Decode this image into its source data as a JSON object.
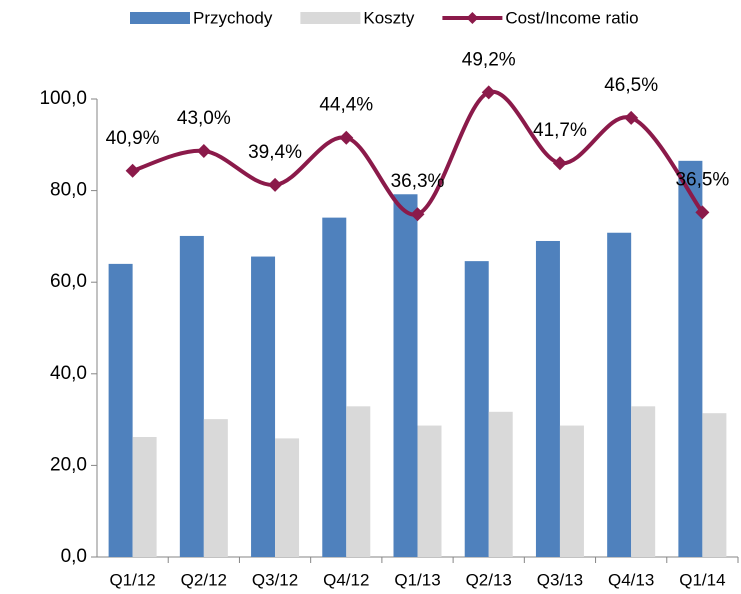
{
  "chart_data": {
    "type": "bar+line",
    "categories": [
      "Q1/12",
      "Q2/12",
      "Q3/12",
      "Q4/12",
      "Q1/13",
      "Q2/13",
      "Q3/13",
      "Q4/13",
      "Q1/14"
    ],
    "series": [
      {
        "name": "Przychody",
        "color": "#4f81bd",
        "type": "bar",
        "values": [
          64.0,
          70.1,
          65.6,
          74.1,
          79.2,
          64.6,
          69.0,
          70.8,
          86.5
        ]
      },
      {
        "name": "Koszty",
        "color": "#d9d9d9",
        "type": "bar",
        "values": [
          26.2,
          30.1,
          25.9,
          32.9,
          28.7,
          31.7,
          28.7,
          32.9,
          31.4
        ]
      },
      {
        "name": "Cost/Income ratio",
        "color": "#8b1a4a",
        "type": "line",
        "axis": "y2",
        "values": [
          40.9,
          43.0,
          39.4,
          44.4,
          36.3,
          49.2,
          41.7,
          46.5,
          36.5
        ],
        "value_labels": [
          "40,9%",
          "43,0%",
          "39,4%",
          "44,4%",
          "36,3%",
          "49,2%",
          "41,7%",
          "46,5%",
          "36,5%"
        ]
      }
    ],
    "ylim": [
      0,
      100
    ],
    "yticks": [
      {
        "value": 0,
        "label": "0,0"
      },
      {
        "value": 20,
        "label": "20,0"
      },
      {
        "value": 40,
        "label": "40,0"
      },
      {
        "value": 60,
        "label": "60,0"
      },
      {
        "value": 80,
        "label": "80,0"
      },
      {
        "value": 100,
        "label": "100,0"
      }
    ],
    "y2lim": [
      0,
      48.5
    ],
    "legend": "top"
  }
}
